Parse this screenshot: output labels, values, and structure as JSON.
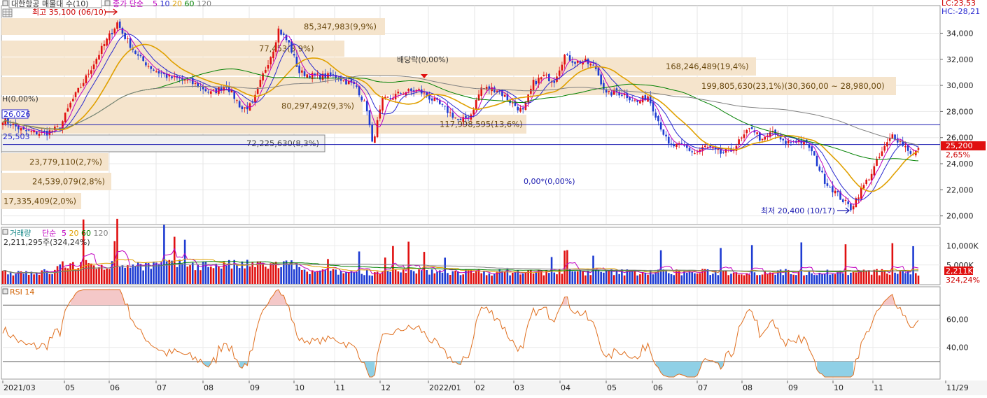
{
  "header": {
    "title": "대한항공 매물대 수(10)",
    "ma_label": "종가 단순",
    "ma_periods": [
      "5",
      "10",
      "20",
      "60",
      "120"
    ],
    "ma_colors": [
      "#c000c0",
      "#2a2ad0",
      "#e0a000",
      "#008000",
      "#808080"
    ],
    "lc": "LC:23,53",
    "hc": "HC:-28,21"
  },
  "volume_header": {
    "title": "거래량",
    "ma_label": "단순",
    "ma_periods": [
      "5",
      "20",
      "60",
      "120"
    ],
    "ma_colors": [
      "#c000c0",
      "#e0a000",
      "#008000",
      "#808080"
    ],
    "current": "2,211,295주(324,24%)"
  },
  "rsi_header": {
    "title": "RSI 14"
  },
  "annotations": {
    "high": "최고 35,100 (06/10)",
    "low": "최저 20,400 (10/17)",
    "dividend": "배당락(0,00%)",
    "left_pct": "H(0,00%)",
    "left_val": "26,026",
    "left_val2": "25,503",
    "center_zero": "0,00*(0,00%)"
  },
  "price_badge": {
    "price": "25,200",
    "pct": "2,65%"
  },
  "volume_badge": {
    "value": "2,211K",
    "pct": "324,24%"
  },
  "chart_data": [
    {
      "type": "volume_profile_candlestick",
      "name": "price",
      "ylim": [
        19500,
        35900
      ],
      "y_ticks": [
        "34,000",
        "32,000",
        "30,000",
        "28,000",
        "26,000",
        "24,000",
        "22,000",
        "20,000"
      ],
      "y_tick_values": [
        34000,
        32000,
        30000,
        28000,
        26000,
        24000,
        22000,
        20000
      ],
      "x_ticks": [
        "2021/03",
        "05",
        "06",
        "07",
        "08",
        "09",
        "10",
        "11",
        "12",
        "2022/01",
        "02",
        "03",
        "04",
        "05",
        "06",
        "07",
        "08",
        "09",
        "10",
        "11",
        "11/29"
      ],
      "hlines": [
        26990,
        25470
      ],
      "volume_profile": [
        {
          "price_low": 32930,
          "price_high": 35100,
          "label": "85,347,983(9,9%)"
        },
        {
          "price_low": 30900,
          "price_high": 32950,
          "label": "77,453(8,9%)"
        },
        {
          "price_low": 28840,
          "price_high": 30880,
          "label": "168,246,489(19,4%)"
        },
        {
          "price_low": 28800,
          "price_high": 30860,
          "label": "199,805,630(23,1%)(30,360,00 ~ 28,980,00)"
        },
        {
          "price_low": 26780,
          "price_high": 28820,
          "label": "80,297,492(9,3%)"
        },
        {
          "price_low": 26700,
          "price_high": 28760,
          "label": "117,998,595(13,6%)"
        },
        {
          "price_low": 24640,
          "price_high": 26700,
          "label": "72,225,630(8,3%)"
        },
        {
          "price_low": 23560,
          "price_high": 24640,
          "label": "23,779,110(2,7%)"
        },
        {
          "price_low": 21940,
          "price_high": 23560,
          "label": "24,539,079(2,8%)"
        },
        {
          "price_low": 20400,
          "price_high": 21940,
          "label": "17,335,409(2,0%)"
        }
      ],
      "anchors": [
        [
          0,
          27400
        ],
        [
          8,
          26500
        ],
        [
          16,
          26300
        ],
        [
          22,
          26800
        ],
        [
          26,
          28600
        ],
        [
          32,
          30600
        ],
        [
          38,
          32800
        ],
        [
          44,
          34800
        ],
        [
          46,
          34000
        ],
        [
          52,
          32200
        ],
        [
          58,
          31200
        ],
        [
          64,
          30600
        ],
        [
          70,
          30400
        ],
        [
          76,
          29900
        ],
        [
          80,
          29400
        ],
        [
          86,
          30000
        ],
        [
          92,
          28200
        ],
        [
          96,
          28500
        ],
        [
          100,
          30800
        ],
        [
          104,
          32800
        ],
        [
          106,
          34300
        ],
        [
          110,
          33200
        ],
        [
          114,
          31000
        ],
        [
          120,
          30700
        ],
        [
          128,
          30700
        ],
        [
          136,
          29900
        ],
        [
          140,
          28200
        ],
        [
          142,
          25500
        ],
        [
          146,
          28800
        ],
        [
          154,
          29500
        ],
        [
          160,
          29600
        ],
        [
          166,
          28800
        ],
        [
          170,
          28200
        ],
        [
          176,
          27200
        ],
        [
          180,
          27800
        ],
        [
          184,
          29800
        ],
        [
          190,
          29700
        ],
        [
          196,
          28600
        ],
        [
          200,
          28000
        ],
        [
          204,
          30200
        ],
        [
          208,
          30700
        ],
        [
          212,
          30400
        ],
        [
          216,
          32300
        ],
        [
          220,
          31800
        ],
        [
          224,
          31800
        ],
        [
          228,
          31300
        ],
        [
          232,
          29300
        ],
        [
          236,
          29500
        ],
        [
          240,
          29200
        ],
        [
          244,
          28700
        ],
        [
          248,
          29200
        ],
        [
          252,
          27300
        ],
        [
          256,
          25400
        ],
        [
          262,
          25300
        ],
        [
          266,
          24800
        ],
        [
          270,
          25300
        ],
        [
          276,
          24800
        ],
        [
          280,
          25000
        ],
        [
          284,
          25900
        ],
        [
          288,
          26800
        ],
        [
          292,
          25700
        ],
        [
          296,
          26500
        ],
        [
          300,
          25600
        ],
        [
          306,
          25800
        ],
        [
          310,
          25300
        ],
        [
          316,
          22700
        ],
        [
          322,
          21400
        ],
        [
          326,
          20600
        ],
        [
          330,
          22000
        ],
        [
          334,
          23300
        ],
        [
          338,
          24900
        ],
        [
          342,
          26200
        ],
        [
          346,
          25500
        ],
        [
          350,
          24700
        ],
        [
          352,
          25200
        ]
      ]
    },
    {
      "type": "bar",
      "name": "volume",
      "ylim": [
        0,
        14500000
      ],
      "y_ticks": [
        "10,000K",
        "5,000K"
      ],
      "y_tick_values": [
        10000000,
        5000000
      ]
    },
    {
      "type": "line",
      "name": "RSI 14",
      "ylim": [
        18,
        82
      ],
      "y_ticks": [
        "60,00",
        "40,00"
      ],
      "y_tick_values": [
        60,
        40
      ],
      "levels": [
        70,
        30
      ]
    }
  ]
}
